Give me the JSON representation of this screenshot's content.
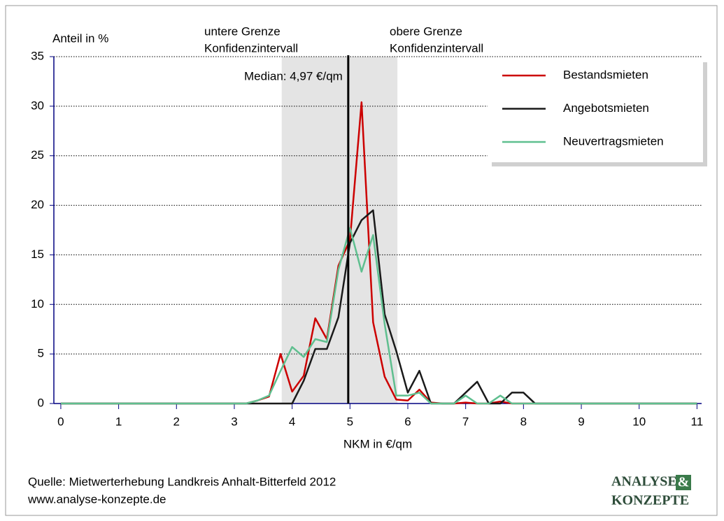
{
  "chart_data": {
    "type": "line",
    "y_label": "Anteil in %",
    "x_label": "NKM in €/qm",
    "annotations": {
      "lower": [
        "untere Grenze",
        "Konfidenzintervall"
      ],
      "upper": [
        "obere Grenze",
        "Konfidenzintervall"
      ],
      "median": "Median: 4,97 €/qm"
    },
    "confidence_interval": [
      3.82,
      5.82
    ],
    "median": 4.97,
    "x": [
      0,
      0.2,
      0.4,
      0.6,
      0.8,
      1,
      1.2,
      1.4,
      1.6,
      1.8,
      2,
      2.2,
      2.4,
      2.6,
      2.8,
      3,
      3.2,
      3.4,
      3.6,
      3.8,
      4,
      4.2,
      4.4,
      4.6,
      4.8,
      5,
      5.2,
      5.4,
      5.6,
      5.8,
      6,
      6.2,
      6.4,
      6.6,
      6.8,
      7,
      7.2,
      7.4,
      7.6,
      7.8,
      8,
      8.2,
      8.4,
      8.6,
      8.8,
      9,
      9.2,
      9.4,
      9.6,
      9.8,
      10,
      10.2,
      10.4,
      10.6,
      10.8,
      11
    ],
    "series": [
      {
        "name": "Bestandsmieten",
        "color": "#cc0000",
        "values": [
          0,
          0,
          0,
          0,
          0,
          0,
          0,
          0,
          0,
          0,
          0,
          0,
          0,
          0,
          0,
          0,
          0,
          0.3,
          0.7,
          5,
          1.2,
          2.8,
          8.6,
          6.5,
          13.9,
          16.5,
          30.4,
          8.2,
          2.7,
          0.4,
          0.3,
          1.4,
          0.1,
          0,
          0,
          0.1,
          0,
          0,
          0.2,
          0,
          0,
          0,
          0,
          0,
          0,
          0,
          0,
          0,
          0,
          0,
          0,
          0,
          0,
          0,
          0,
          0
        ]
      },
      {
        "name": "Angebotsmieten",
        "color": "#1a1a1a",
        "values": [
          0,
          0,
          0,
          0,
          0,
          0,
          0,
          0,
          0,
          0,
          0,
          0,
          0,
          0,
          0,
          0,
          0,
          0,
          0,
          0,
          0,
          2.3,
          5.5,
          5.5,
          8.7,
          16.2,
          18.5,
          19.5,
          9,
          5.3,
          1.1,
          3.3,
          0,
          0,
          0,
          1.1,
          2.2,
          0,
          0,
          1.1,
          1.1,
          0,
          0,
          0,
          0,
          0,
          0,
          0,
          0,
          0,
          0,
          0,
          0,
          0,
          0,
          0
        ]
      },
      {
        "name": "Neuvertragsmieten",
        "color": "#5fbf8f",
        "values": [
          0,
          0,
          0,
          0,
          0,
          0,
          0,
          0,
          0,
          0,
          0,
          0,
          0,
          0,
          0,
          0,
          0,
          0.3,
          0.8,
          3.3,
          5.7,
          4.7,
          6.5,
          6.2,
          13.5,
          17.7,
          13.3,
          17,
          8,
          0.8,
          0.8,
          1.1,
          0,
          0,
          0,
          0.8,
          0,
          0,
          0.8,
          0,
          0,
          0,
          0,
          0,
          0,
          0,
          0,
          0,
          0,
          0,
          0,
          0,
          0,
          0,
          0,
          0
        ]
      }
    ],
    "xlim": [
      -0.12,
      11.08
    ],
    "xticks": [
      0,
      1,
      2,
      3,
      4,
      5,
      6,
      7,
      8,
      9,
      10,
      11
    ],
    "ylim": [
      0,
      35
    ],
    "yticks": [
      0,
      5,
      10,
      15,
      20,
      25,
      30,
      35
    ],
    "grid": true,
    "legend": "top-right",
    "source": [
      "Quelle: Mietwerterhebung Landkreis Anhalt-Bitterfeld 2012",
      "www.analyse-konzepte.de"
    ],
    "logo": [
      "ANALYSE",
      "&",
      "KONZEPTE"
    ]
  }
}
